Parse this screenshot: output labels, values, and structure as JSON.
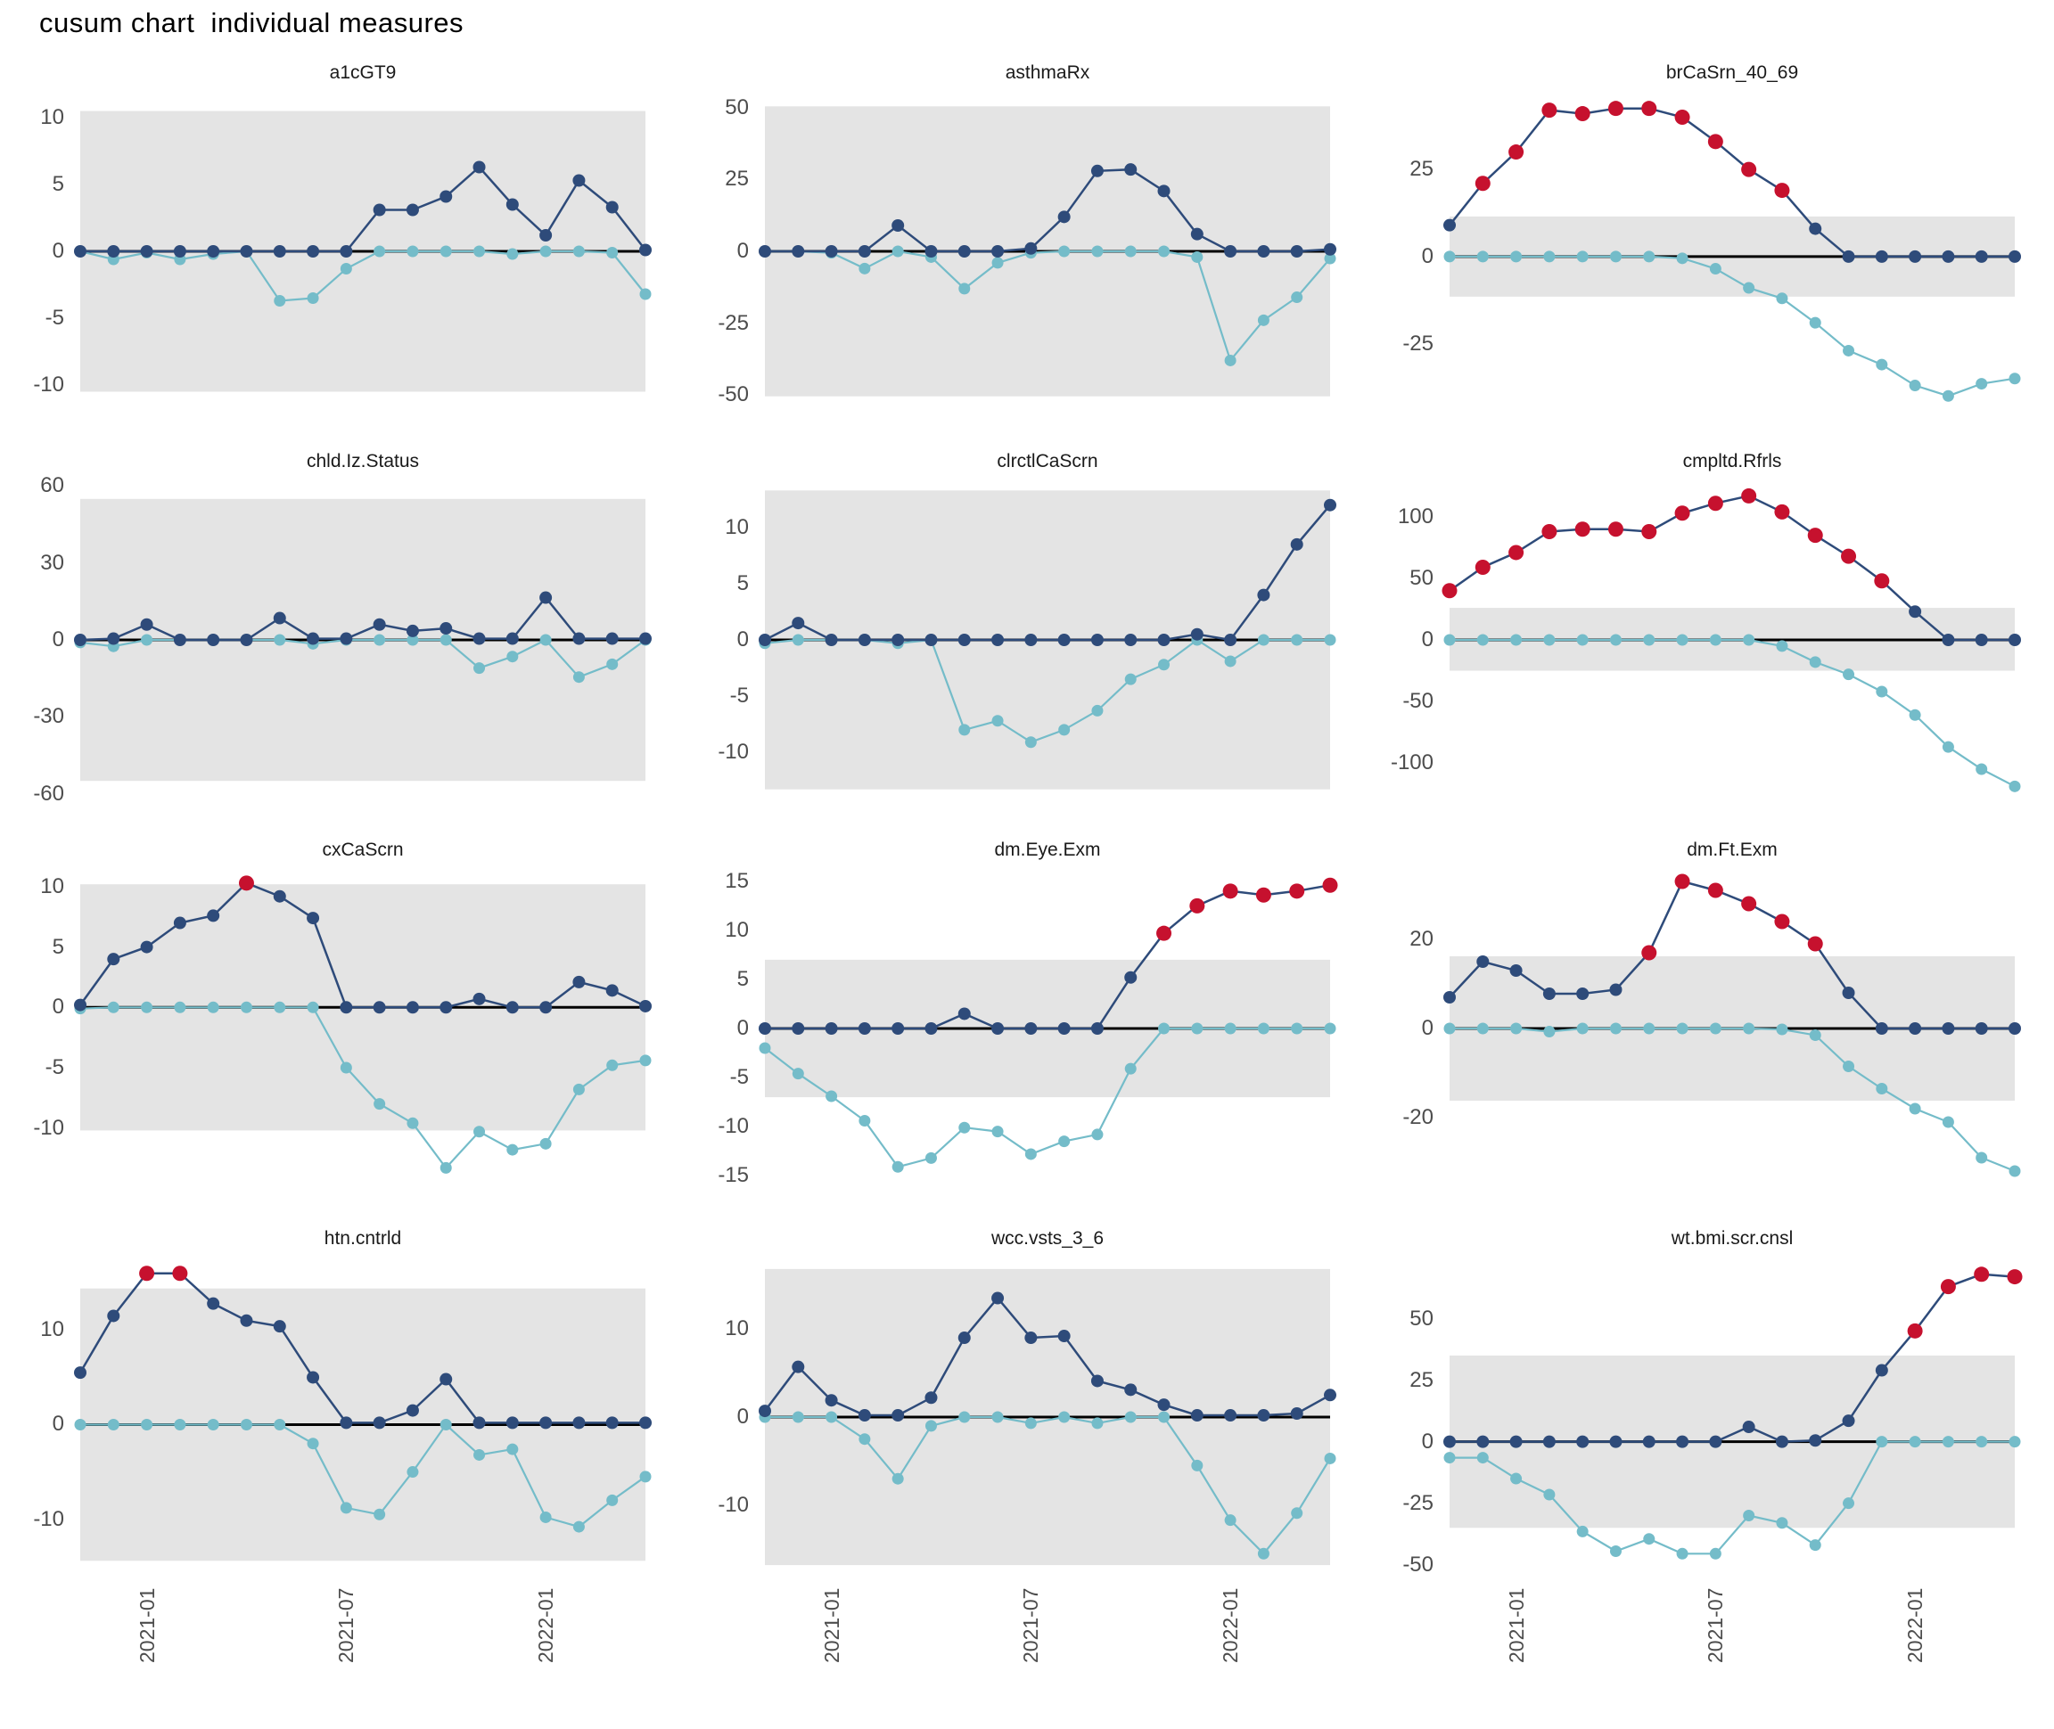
{
  "page": {
    "title": "cusum chart  individual measures"
  },
  "colors": {
    "upper_line": "#2E4B7A",
    "lower_line": "#74BCC9",
    "signal": "#C6112E",
    "band": "#E4E4E4",
    "zero_line": "#000000",
    "axis_text": "#4D4D4D",
    "panel_title": "#1A1A1A"
  },
  "chart_data": {
    "type": "line",
    "title": "cusum chart  individual measures",
    "legend": "none",
    "grid": "off",
    "x": {
      "n_points": 18,
      "tick_indices": [
        2,
        8,
        14
      ],
      "tick_labels": [
        "2021-01",
        "2021-07",
        "2022-01"
      ]
    },
    "panels": [
      {
        "title": "a1cGT9",
        "y_ticks": [
          10,
          5,
          0,
          -5,
          -10
        ],
        "y_range": [
          -11.6,
          11.6
        ],
        "band": [
          -10.5,
          10.5
        ],
        "series": {
          "upper": [
            0,
            0,
            0,
            0,
            0,
            0,
            0,
            0,
            0,
            3.1,
            3.1,
            4.1,
            6.3,
            3.5,
            1.2,
            5.3,
            3.3,
            0.1
          ],
          "lower": [
            0,
            -0.6,
            -0.1,
            -0.6,
            -0.2,
            0,
            -3.7,
            -3.5,
            -1.3,
            0,
            0,
            0,
            0,
            -0.2,
            0,
            0,
            -0.1,
            -3.2
          ]
        },
        "signals_upper": []
      },
      {
        "title": "asthmaRx",
        "y_ticks": [
          50,
          25,
          0,
          -25,
          -50
        ],
        "y_range": [
          -54,
          54
        ],
        "band": [
          -50.5,
          50.5
        ],
        "series": {
          "upper": [
            0,
            0,
            0,
            0,
            9,
            0,
            0,
            0,
            1,
            12,
            28,
            28.5,
            21,
            6,
            0,
            0,
            0,
            0.7
          ],
          "lower": [
            0,
            0,
            -0.5,
            -6,
            0,
            -2,
            -13,
            -4,
            -0.5,
            0,
            0,
            0,
            0,
            -2,
            -38,
            -24,
            -16,
            -2.5
          ]
        },
        "signals_upper": []
      },
      {
        "title": "brCaSrn_40_69",
        "y_ticks": [
          25,
          0,
          -25
        ],
        "y_range": [
          -43,
          46
        ],
        "band": [
          -11.5,
          11.5
        ],
        "series": {
          "upper": [
            9,
            21,
            30,
            42,
            41,
            42.5,
            42.5,
            40,
            33,
            25,
            19,
            8,
            0,
            0,
            0,
            0,
            0,
            0
          ],
          "lower": [
            0,
            0,
            0,
            0,
            0,
            0,
            0,
            -0.5,
            -3.5,
            -9,
            -12,
            -19,
            -27,
            -31,
            -37,
            -40,
            -36.5,
            -35
          ]
        },
        "signals_upper": [
          1,
          2,
          3,
          4,
          5,
          6,
          7,
          8,
          9,
          10
        ]
      },
      {
        "title": "chld.Iz.Status",
        "y_ticks": [
          60,
          30,
          0,
          -30,
          -60
        ],
        "y_range": [
          -60.5,
          60.5
        ],
        "band": [
          -55,
          55
        ],
        "series": {
          "upper": [
            0,
            0.5,
            6,
            0,
            0,
            0,
            8.5,
            0.5,
            0.5,
            6,
            3.5,
            4.5,
            0.5,
            0.5,
            16.5,
            0.5,
            0.5,
            0.5
          ],
          "lower": [
            -1,
            -2.5,
            0,
            0,
            0,
            0,
            0,
            -1.5,
            0,
            0,
            0,
            0,
            -11,
            -6.5,
            0,
            -14.5,
            -9.5,
            0
          ]
        },
        "signals_upper": []
      },
      {
        "title": "clrctlCaScrn",
        "y_ticks": [
          10,
          5,
          0,
          -5,
          -10
        ],
        "y_range": [
          -13.8,
          13.8
        ],
        "band": [
          -13.3,
          13.3
        ],
        "series": {
          "upper": [
            0,
            1.5,
            0,
            0,
            0,
            0,
            0,
            0,
            0,
            0,
            0,
            0,
            0,
            0.5,
            0,
            4,
            8.5,
            12
          ],
          "lower": [
            -0.3,
            0,
            0,
            0,
            -0.3,
            0,
            -8,
            -7.2,
            -9.1,
            -8,
            -6.3,
            -3.5,
            -2.2,
            0,
            -1.9,
            0,
            0,
            0
          ]
        },
        "signals_upper": []
      },
      {
        "title": "cmpltd.Rfrls",
        "y_ticks": [
          100,
          50,
          0,
          -50,
          -100
        ],
        "y_range": [
          -126,
          126
        ],
        "band": [
          -25,
          26
        ],
        "series": {
          "upper": [
            40,
            59,
            71,
            88,
            90,
            90,
            88,
            103,
            111,
            117,
            104,
            85,
            68,
            48,
            23,
            0,
            0,
            0
          ],
          "lower": [
            0,
            0,
            0,
            0,
            0,
            0,
            0,
            0,
            0,
            0,
            -5,
            -18,
            -28,
            -42,
            -61,
            -87,
            -105,
            -119
          ]
        },
        "signals_upper": [
          0,
          1,
          2,
          3,
          4,
          5,
          6,
          7,
          8,
          9,
          10,
          11,
          12,
          13
        ]
      },
      {
        "title": "cxCaScrn",
        "y_ticks": [
          10,
          5,
          0,
          -5,
          -10
        ],
        "y_range": [
          -14.6,
          11.1
        ],
        "band": [
          -10.2,
          10.2
        ],
        "series": {
          "upper": [
            0.2,
            4,
            5,
            7,
            7.6,
            10.3,
            9.2,
            7.4,
            0,
            0,
            0,
            0,
            0.7,
            0,
            0,
            2.1,
            1.4,
            0.1
          ],
          "lower": [
            -0.1,
            0,
            0,
            0,
            0,
            0,
            0,
            0,
            -5,
            -8,
            -9.6,
            -13.3,
            -10.3,
            -11.8,
            -11.3,
            -6.8,
            -4.8,
            -4.4
          ]
        },
        "signals_upper": [
          5
        ]
      },
      {
        "title": "dm.Eye.Exm",
        "y_ticks": [
          15,
          10,
          5,
          0,
          -5,
          -10,
          -15
        ],
        "y_range": [
          -15.8,
          15.8
        ],
        "band": [
          -7,
          7
        ],
        "series": {
          "upper": [
            0,
            0,
            0,
            0,
            0,
            0,
            1.5,
            0,
            0,
            0,
            0,
            5.2,
            9.7,
            12.5,
            14,
            13.6,
            14,
            14.6
          ],
          "lower": [
            -2,
            -4.6,
            -6.9,
            -9.4,
            -14.1,
            -13.2,
            -10.1,
            -10.5,
            -12.8,
            -11.5,
            -10.8,
            -4.1,
            0,
            0,
            0,
            0,
            0,
            0
          ]
        },
        "signals_upper": [
          12,
          13,
          14,
          15,
          16,
          17
        ]
      },
      {
        "title": "dm.Ft.Exm",
        "y_ticks": [
          20,
          0,
          -20
        ],
        "y_range": [
          -34.8,
          34.8
        ],
        "band": [
          -16.2,
          16.2
        ],
        "series": {
          "upper": [
            7,
            15,
            13,
            7.8,
            7.8,
            8.7,
            17,
            33,
            31,
            28,
            24,
            19,
            8,
            0,
            0,
            0,
            0,
            0
          ],
          "lower": [
            0,
            0,
            0,
            -0.7,
            0,
            0,
            0,
            0,
            0,
            0,
            -0.2,
            -1.5,
            -8.5,
            -13.5,
            -18,
            -21,
            -29,
            -32
          ]
        },
        "signals_upper": [
          6,
          7,
          8,
          9,
          10,
          11
        ]
      },
      {
        "title": "htn.cntrld",
        "y_ticks": [
          10,
          0,
          -10
        ],
        "y_range": [
          -15.6,
          17.2
        ],
        "band": [
          -14.4,
          14.4
        ],
        "series": {
          "upper": [
            5.5,
            11.5,
            16,
            16,
            12.8,
            11,
            10.4,
            5,
            0.2,
            0.2,
            1.5,
            4.8,
            0.2,
            0.2,
            0.2,
            0.2,
            0.2,
            0.2
          ],
          "lower": [
            0,
            0,
            0,
            0,
            0,
            0,
            0,
            -2,
            -8.8,
            -9.5,
            -5,
            0,
            -3.2,
            -2.6,
            -9.8,
            -10.8,
            -8,
            -5.5
          ]
        },
        "signals_upper": [
          2,
          3
        ]
      },
      {
        "title": "wcc.vsts_3_6",
        "y_ticks": [
          10,
          0,
          -10
        ],
        "y_range": [
          -17.6,
          17.6
        ],
        "band": [
          -16.8,
          16.8
        ],
        "series": {
          "upper": [
            0.7,
            5.7,
            1.9,
            0.2,
            0.2,
            2.2,
            9,
            13.5,
            9,
            9.2,
            4.1,
            3.1,
            1.4,
            0.2,
            0.2,
            0.2,
            0.4,
            2.5
          ],
          "lower": [
            0,
            0,
            0,
            -2.5,
            -7,
            -1,
            0,
            0,
            -0.7,
            0,
            -0.7,
            0,
            0,
            -5.5,
            -11.7,
            -15.5,
            -10.9,
            -4.7
          ]
        },
        "signals_upper": []
      },
      {
        "title": "wt.bmi.scr.cnsl",
        "y_ticks": [
          50,
          25,
          0,
          -25,
          -50
        ],
        "y_range": [
          -53,
          73
        ],
        "band": [
          -35,
          35
        ],
        "series": {
          "upper": [
            0,
            0,
            0,
            0,
            0,
            0,
            0,
            0,
            0,
            6,
            0,
            0.5,
            8.5,
            29,
            45,
            63,
            68,
            67
          ],
          "lower": [
            -6.5,
            -6.5,
            -15,
            -21.5,
            -36.5,
            -44.5,
            -39.5,
            -45.5,
            -45.5,
            -30,
            -33,
            -42,
            -25,
            0,
            0,
            0,
            0,
            0
          ]
        },
        "signals_upper": [
          14,
          15,
          16,
          17
        ]
      }
    ]
  }
}
